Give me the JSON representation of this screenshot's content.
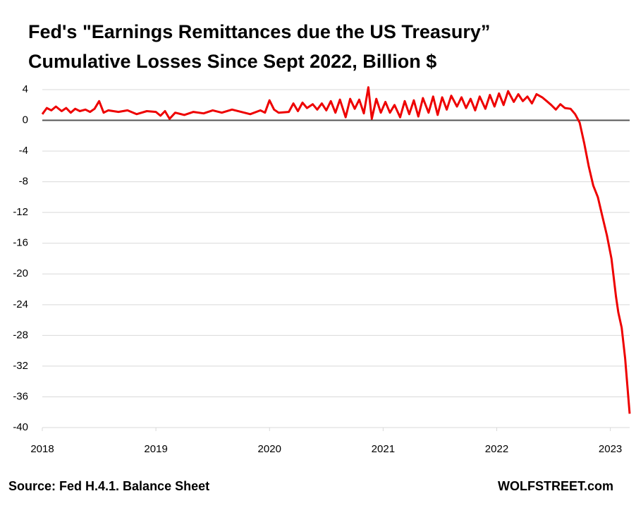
{
  "chart_data": {
    "type": "line",
    "title": "Fed's \"Earnings Remittances due the US Treasury”",
    "subtitle": "Cumulative Losses Since Sept 2022, Billion $",
    "source": "Source: Fed H.4.1. Balance Sheet",
    "credit": "WOLFSTREET.com",
    "xlim": [
      2018,
      2023.17
    ],
    "xticks": [
      2018,
      2019,
      2020,
      2021,
      2022,
      2023
    ],
    "ylim": [
      -40,
      4
    ],
    "yticks": [
      4,
      0,
      -4,
      -8,
      -12,
      -16,
      -20,
      -24,
      -28,
      -32,
      -36,
      -40
    ],
    "grid": true,
    "series": [
      {
        "color": "#ee0000",
        "x": [
          2018.0,
          2018.04,
          2018.08,
          2018.12,
          2018.17,
          2018.21,
          2018.25,
          2018.29,
          2018.33,
          2018.38,
          2018.42,
          2018.46,
          2018.5,
          2018.54,
          2018.58,
          2018.67,
          2018.75,
          2018.83,
          2018.92,
          2019.0,
          2019.04,
          2019.08,
          2019.12,
          2019.17,
          2019.25,
          2019.33,
          2019.42,
          2019.5,
          2019.58,
          2019.67,
          2019.75,
          2019.83,
          2019.92,
          2019.96,
          2020.0,
          2020.04,
          2020.08,
          2020.17,
          2020.21,
          2020.25,
          2020.29,
          2020.33,
          2020.38,
          2020.42,
          2020.46,
          2020.5,
          2020.54,
          2020.58,
          2020.62,
          2020.67,
          2020.71,
          2020.75,
          2020.79,
          2020.83,
          2020.87,
          2020.9,
          2020.94,
          2020.98,
          2021.02,
          2021.06,
          2021.1,
          2021.15,
          2021.19,
          2021.23,
          2021.27,
          2021.31,
          2021.35,
          2021.4,
          2021.44,
          2021.48,
          2021.52,
          2021.56,
          2021.6,
          2021.65,
          2021.69,
          2021.73,
          2021.77,
          2021.81,
          2021.85,
          2021.9,
          2021.94,
          2021.98,
          2022.02,
          2022.06,
          2022.1,
          2022.15,
          2022.19,
          2022.23,
          2022.27,
          2022.31,
          2022.35,
          2022.4,
          2022.44,
          2022.48,
          2022.52,
          2022.56,
          2022.6,
          2022.65,
          2022.69,
          2022.73,
          2022.77,
          2022.81,
          2022.85,
          2022.89,
          2022.93,
          2022.97,
          2023.01,
          2023.05,
          2023.07,
          2023.1,
          2023.13,
          2023.17
        ],
        "values": [
          0.8,
          1.6,
          1.3,
          1.8,
          1.2,
          1.6,
          1.0,
          1.5,
          1.2,
          1.4,
          1.1,
          1.5,
          2.5,
          1.0,
          1.3,
          1.1,
          1.3,
          0.8,
          1.2,
          1.1,
          0.6,
          1.2,
          0.2,
          1.0,
          0.7,
          1.1,
          0.9,
          1.3,
          1.0,
          1.4,
          1.1,
          0.8,
          1.3,
          1.0,
          2.6,
          1.4,
          1.0,
          1.1,
          2.2,
          1.2,
          2.3,
          1.6,
          2.1,
          1.4,
          2.2,
          1.3,
          2.5,
          1.0,
          2.7,
          0.4,
          2.8,
          1.5,
          2.7,
          0.9,
          4.3,
          0.2,
          2.8,
          1.0,
          2.4,
          1.0,
          2.0,
          0.4,
          2.5,
          0.8,
          2.6,
          0.5,
          2.9,
          1.0,
          3.1,
          0.7,
          3.0,
          1.4,
          3.2,
          1.8,
          3.0,
          1.6,
          2.8,
          1.3,
          3.1,
          1.5,
          3.3,
          1.8,
          3.5,
          2.0,
          3.8,
          2.4,
          3.4,
          2.5,
          3.1,
          2.2,
          3.4,
          3.0,
          2.5,
          2.0,
          1.4,
          2.1,
          1.6,
          1.5,
          0.8,
          -0.3,
          -3.0,
          -6.0,
          -8.5,
          -10.0,
          -12.5,
          -15.0,
          -18.0,
          -23.0,
          -25.0,
          -27.0,
          -31.0,
          -38.2
        ]
      }
    ]
  }
}
